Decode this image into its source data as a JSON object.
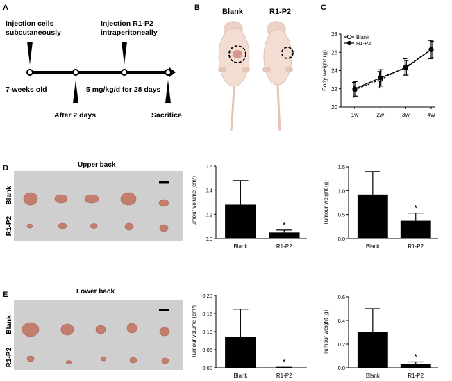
{
  "panels": {
    "A": {
      "letter": "A",
      "injection_cells": "Injection  cells",
      "subcutaneously": "subcutaneously",
      "injection_r1p2": "Injection R1-P2",
      "intraperitoneally": "intraperitoneally",
      "age": "7-weeks old",
      "dose": "5 mg/kg/d for 28 days",
      "after": "After 2 days",
      "sacrifice": "Sacrifice"
    },
    "B": {
      "letter": "B",
      "blank": "Blank",
      "r1p2": "R1-P2"
    },
    "C": {
      "letter": "C"
    },
    "D": {
      "letter": "D",
      "title": "Upper back",
      "row1": "Blank",
      "row2": "R1-P2"
    },
    "E": {
      "letter": "E",
      "title": "Lower back",
      "row1": "Blank",
      "row2": "R1-P2"
    }
  },
  "colors": {
    "ink": "#000000",
    "photo_bg": "#cfcfcf",
    "tumour": "#c98a7a",
    "mouse": "#f1d9cf"
  },
  "chart_data": [
    {
      "id": "C",
      "type": "line",
      "ylabel": "Body weight (g)",
      "xlabel": "",
      "categories": [
        "1w",
        "2w",
        "3w",
        "4w"
      ],
      "ylim": [
        20,
        28
      ],
      "yticks": [
        20,
        22,
        24,
        26,
        28
      ],
      "legend": "top-left",
      "series": [
        {
          "name": "Blank",
          "marker": "open-circle",
          "values": [
            21.9,
            23.0,
            24.4,
            26.3
          ],
          "errors": [
            0.8,
            0.9,
            0.9,
            1.0
          ]
        },
        {
          "name": "R1-P2",
          "marker": "filled-circle",
          "values": [
            22.0,
            23.2,
            24.3,
            26.3
          ],
          "errors": [
            0.8,
            0.9,
            0.8,
            0.9
          ]
        }
      ]
    },
    {
      "id": "D-vol",
      "type": "bar",
      "ylabel": "Tumour volume (cm³)",
      "categories": [
        "Blank",
        "R1-P2"
      ],
      "values": [
        0.28,
        0.05
      ],
      "errors": [
        0.2,
        0.02
      ],
      "ylim": [
        0,
        0.6
      ],
      "yticks": [
        "0.0",
        "0.2",
        "0.4",
        "0.6"
      ],
      "significance": [
        "",
        "*"
      ]
    },
    {
      "id": "D-wt",
      "type": "bar",
      "ylabel": "Tumour weight (g)",
      "categories": [
        "Blank",
        "R1-P2"
      ],
      "values": [
        0.92,
        0.37
      ],
      "errors": [
        0.48,
        0.16
      ],
      "ylim": [
        0,
        1.5
      ],
      "yticks": [
        "0.0",
        "0.5",
        "1.0",
        "1.5"
      ],
      "significance": [
        "",
        "*"
      ]
    },
    {
      "id": "E-vol",
      "type": "bar",
      "ylabel": "Tumour volume (cm³)",
      "categories": [
        "Blank",
        "R1-P2"
      ],
      "values": [
        0.085,
        0.001
      ],
      "errors": [
        0.077,
        0.0005
      ],
      "ylim": [
        0,
        0.2
      ],
      "yticks": [
        "0.00",
        "0.05",
        "0.10",
        "0.15",
        "0.20"
      ],
      "significance": [
        "",
        "*"
      ]
    },
    {
      "id": "E-wt",
      "type": "bar",
      "ylabel": "Tumour weight (g)",
      "categories": [
        "Blank",
        "R1-P2"
      ],
      "values": [
        0.3,
        0.035
      ],
      "errors": [
        0.2,
        0.015
      ],
      "ylim": [
        0,
        0.6
      ],
      "yticks": [
        "0.0",
        "0.2",
        "0.4",
        "0.6"
      ],
      "significance": [
        "",
        "*"
      ]
    }
  ]
}
